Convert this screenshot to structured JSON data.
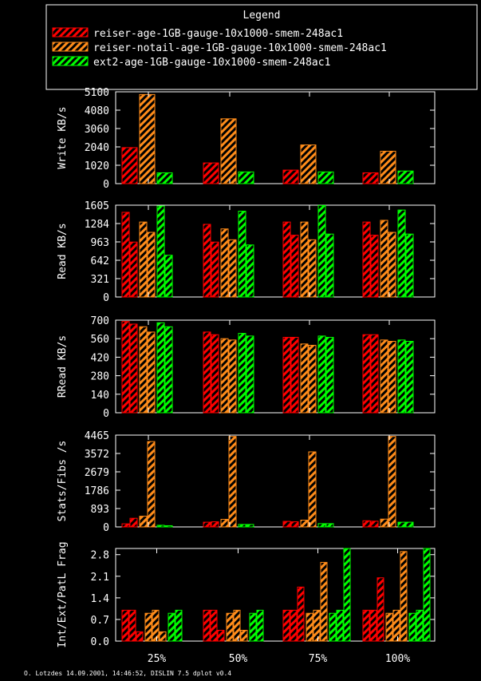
{
  "legend": {
    "title": "Legend",
    "entries": [
      {
        "label": "reiser-age-1GB-gauge-10x1000-smem-248ac1",
        "color": "#ff0000"
      },
      {
        "label": "reiser-notail-age-1GB-gauge-10x1000-smem-248ac1",
        "color": "#ff8c1a"
      },
      {
        "label": "ext2-age-1GB-gauge-10x1000-smem-248ac1",
        "color": "#00ff00"
      }
    ]
  },
  "footer": "O. Lotzdes 14.09.2001, 14:46:52, DISLIN 7.5 dplot v0.4",
  "chart_data": [
    {
      "type": "bar",
      "ylabel": "Write KB/s",
      "ylim": [
        0,
        5100
      ],
      "yticks": [
        "0",
        "1020",
        "2040",
        "3060",
        "4080",
        "5100"
      ],
      "categories": [
        "25%",
        "50%",
        "75%",
        "100%"
      ],
      "bars_per_series": 1,
      "series": [
        {
          "name": "reiser-age-1GB-gauge-10x1000-smem-248ac1",
          "values": [
            [
              2000
            ],
            [
              1150
            ],
            [
              750
            ],
            [
              600
            ]
          ]
        },
        {
          "name": "reiser-notail-age-1GB-gauge-10x1000-smem-248ac1",
          "values": [
            [
              4950
            ],
            [
              3600
            ],
            [
              2150
            ],
            [
              1800
            ]
          ]
        },
        {
          "name": "ext2-age-1GB-gauge-10x1000-smem-248ac1",
          "values": [
            [
              600
            ],
            [
              650
            ],
            [
              650
            ],
            [
              700
            ]
          ]
        }
      ]
    },
    {
      "type": "bar",
      "ylabel": "Read KB/s",
      "ylim": [
        0,
        1605
      ],
      "yticks": [
        "0",
        "321",
        "642",
        "963",
        "1284",
        "1605"
      ],
      "categories": [
        "25%",
        "50%",
        "75%",
        "100%"
      ],
      "bars_per_series": 2,
      "series": [
        {
          "name": "reiser-age-1GB-gauge-10x1000-smem-248ac1",
          "values": [
            [
              1480,
              960
            ],
            [
              1270,
              960
            ],
            [
              1310,
              1080
            ],
            [
              1310,
              1080
            ]
          ]
        },
        {
          "name": "reiser-notail-age-1GB-gauge-10x1000-smem-248ac1",
          "values": [
            [
              1310,
              1130
            ],
            [
              1190,
              1000
            ],
            [
              1310,
              1000
            ],
            [
              1340,
              1130
            ]
          ]
        },
        {
          "name": "ext2-age-1GB-gauge-10x1000-smem-248ac1",
          "values": [
            [
              1590,
              730
            ],
            [
              1500,
              910
            ],
            [
              1600,
              1100
            ],
            [
              1520,
              1100
            ]
          ]
        }
      ]
    },
    {
      "type": "bar",
      "ylabel": "RRead KB/s",
      "ylim": [
        0,
        700
      ],
      "yticks": [
        "0",
        "140",
        "280",
        "420",
        "560",
        "700"
      ],
      "categories": [
        "25%",
        "50%",
        "75%",
        "100%"
      ],
      "bars_per_series": 2,
      "series": [
        {
          "name": "reiser-age-1GB-gauge-10x1000-smem-248ac1",
          "values": [
            [
              690,
              670
            ],
            [
              610,
              590
            ],
            [
              570,
              570
            ],
            [
              590,
              590
            ]
          ]
        },
        {
          "name": "reiser-notail-age-1GB-gauge-10x1000-smem-248ac1",
          "values": [
            [
              650,
              610
            ],
            [
              560,
              550
            ],
            [
              520,
              510
            ],
            [
              550,
              540
            ]
          ]
        },
        {
          "name": "ext2-age-1GB-gauge-10x1000-smem-248ac1",
          "values": [
            [
              680,
              650
            ],
            [
              600,
              580
            ],
            [
              580,
              570
            ],
            [
              550,
              540
            ]
          ]
        }
      ]
    },
    {
      "type": "bar",
      "ylabel": "Stats/Fibs /s",
      "ylim": [
        0,
        4465
      ],
      "yticks": [
        "0",
        "893",
        "1786",
        "2679",
        "3572",
        "4465"
      ],
      "categories": [
        "25%",
        "50%",
        "75%",
        "100%"
      ],
      "bars_per_series": 2,
      "series": [
        {
          "name": "reiser-age-1GB-gauge-10x1000-smem-248ac1",
          "values": [
            [
              150,
              420
            ],
            [
              230,
              250
            ],
            [
              270,
              250
            ],
            [
              300,
              280
            ]
          ]
        },
        {
          "name": "reiser-notail-age-1GB-gauge-10x1000-smem-248ac1",
          "values": [
            [
              520,
              4150
            ],
            [
              370,
              4400
            ],
            [
              330,
              3650
            ],
            [
              380,
              4400
            ]
          ]
        },
        {
          "name": "ext2-age-1GB-gauge-10x1000-smem-248ac1",
          "values": [
            [
              80,
              60
            ],
            [
              120,
              120
            ],
            [
              160,
              160
            ],
            [
              230,
              230
            ]
          ]
        }
      ]
    },
    {
      "type": "bar",
      "ylabel": "Int/Ext/PatL Frag",
      "ylim": [
        0,
        3.0
      ],
      "yticks": [
        "0.0",
        "0.7",
        "1.4",
        "2.1",
        "2.8"
      ],
      "categories": [
        "25%",
        "50%",
        "75%",
        "100%"
      ],
      "bars_per_series": 3,
      "series": [
        {
          "name": "reiser-age-1GB-gauge-10x1000-smem-248ac1",
          "values": [
            [
              1.0,
              1.0,
              0.3
            ],
            [
              1.0,
              1.0,
              0.35
            ],
            [
              1.0,
              1.0,
              1.75
            ],
            [
              1.0,
              1.0,
              2.05
            ]
          ]
        },
        {
          "name": "reiser-notail-age-1GB-gauge-10x1000-smem-248ac1",
          "values": [
            [
              0.9,
              1.0,
              0.3
            ],
            [
              0.9,
              1.0,
              0.35
            ],
            [
              0.9,
              1.0,
              2.55
            ],
            [
              0.9,
              1.0,
              2.9
            ]
          ]
        },
        {
          "name": "ext2-age-1GB-gauge-10x1000-smem-248ac1",
          "values": [
            [
              0.9,
              1.0,
              0.0
            ],
            [
              0.9,
              1.0,
              0.0
            ],
            [
              0.9,
              1.0,
              3.0
            ],
            [
              0.9,
              1.0,
              3.0
            ]
          ]
        }
      ]
    }
  ]
}
